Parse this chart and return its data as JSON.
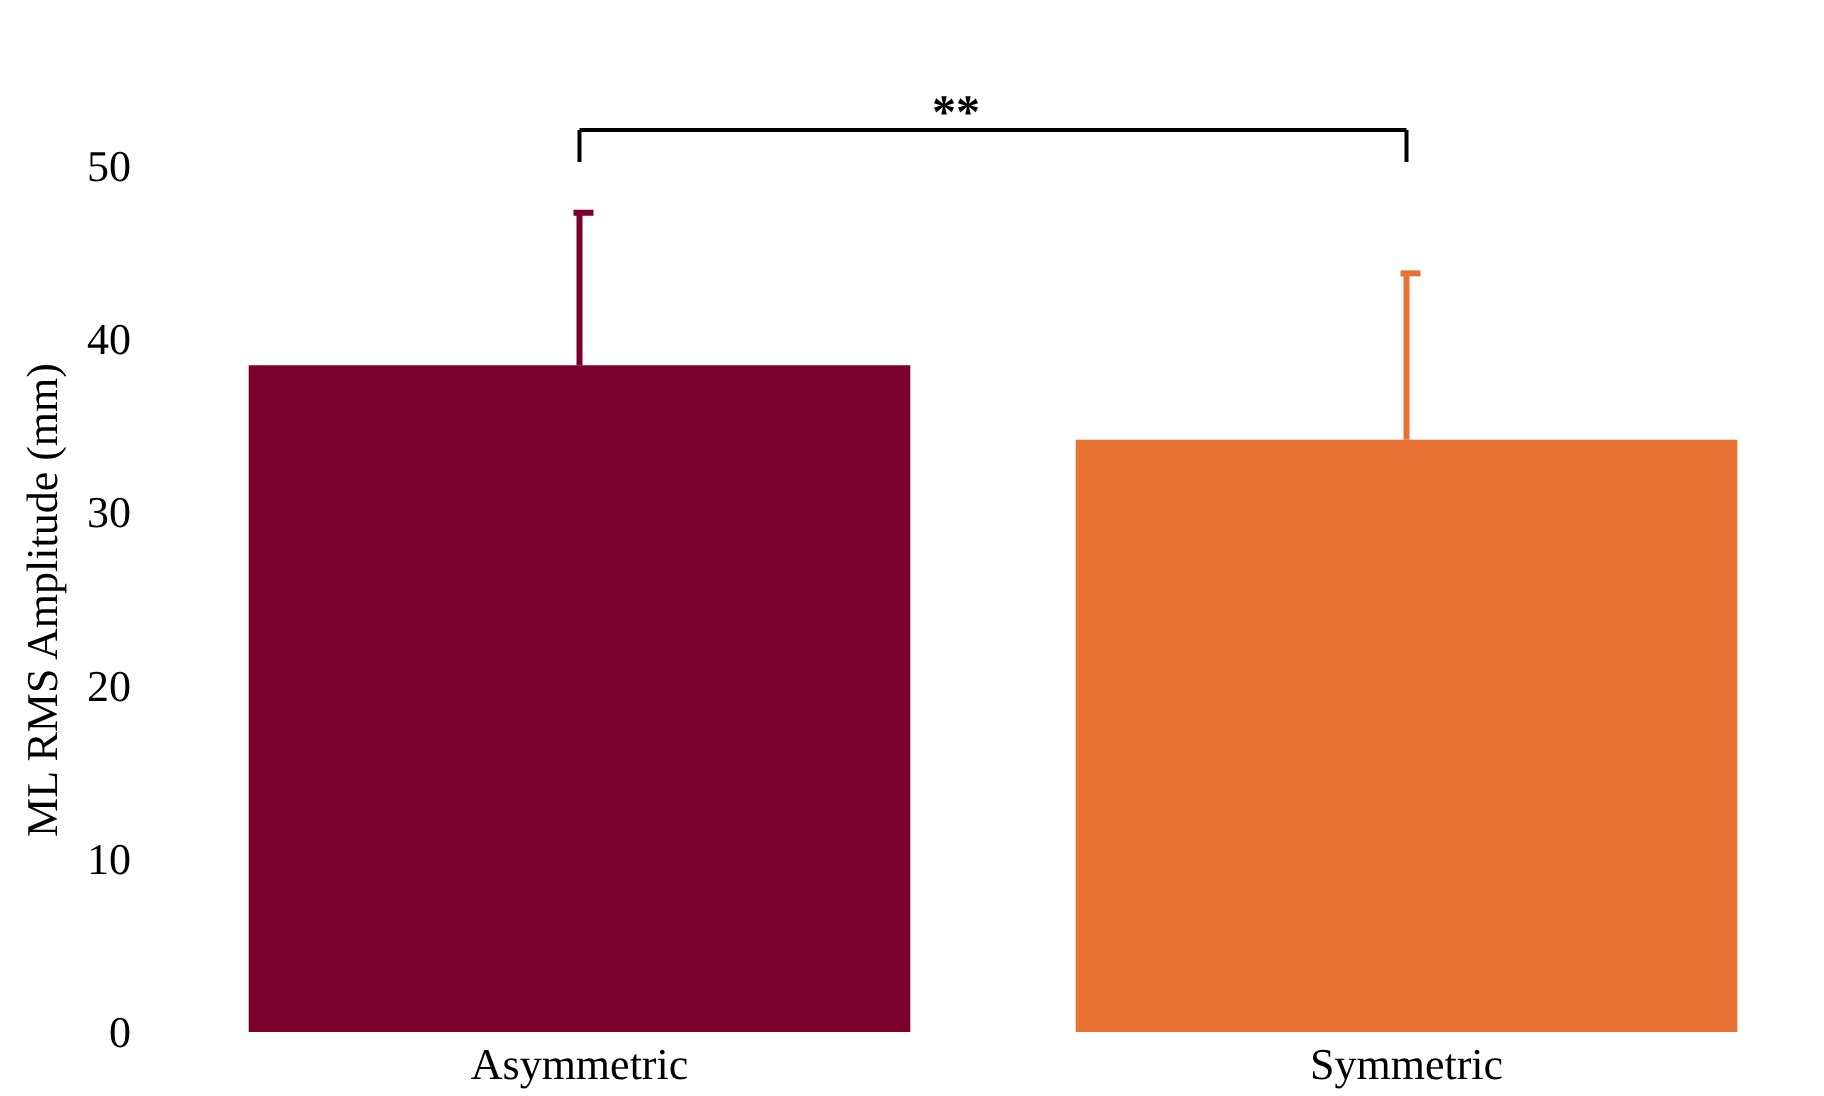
{
  "chart_data": {
    "type": "bar",
    "ylabel": "ML RMS Amplitude (mm)",
    "categories": [
      "Asymmetric",
      "Symmetric"
    ],
    "values": [
      38.5,
      34.2
    ],
    "colors": [
      "#7b002b",
      "#e87234"
    ],
    "errors": [
      [
        38.5,
        47.3
      ],
      [
        34.2,
        43.8
      ]
    ],
    "ylim": [
      0,
      50
    ],
    "yticks": [
      0,
      10,
      20,
      30,
      40,
      50
    ],
    "grid": false,
    "annotations": [
      "**"
    ]
  }
}
